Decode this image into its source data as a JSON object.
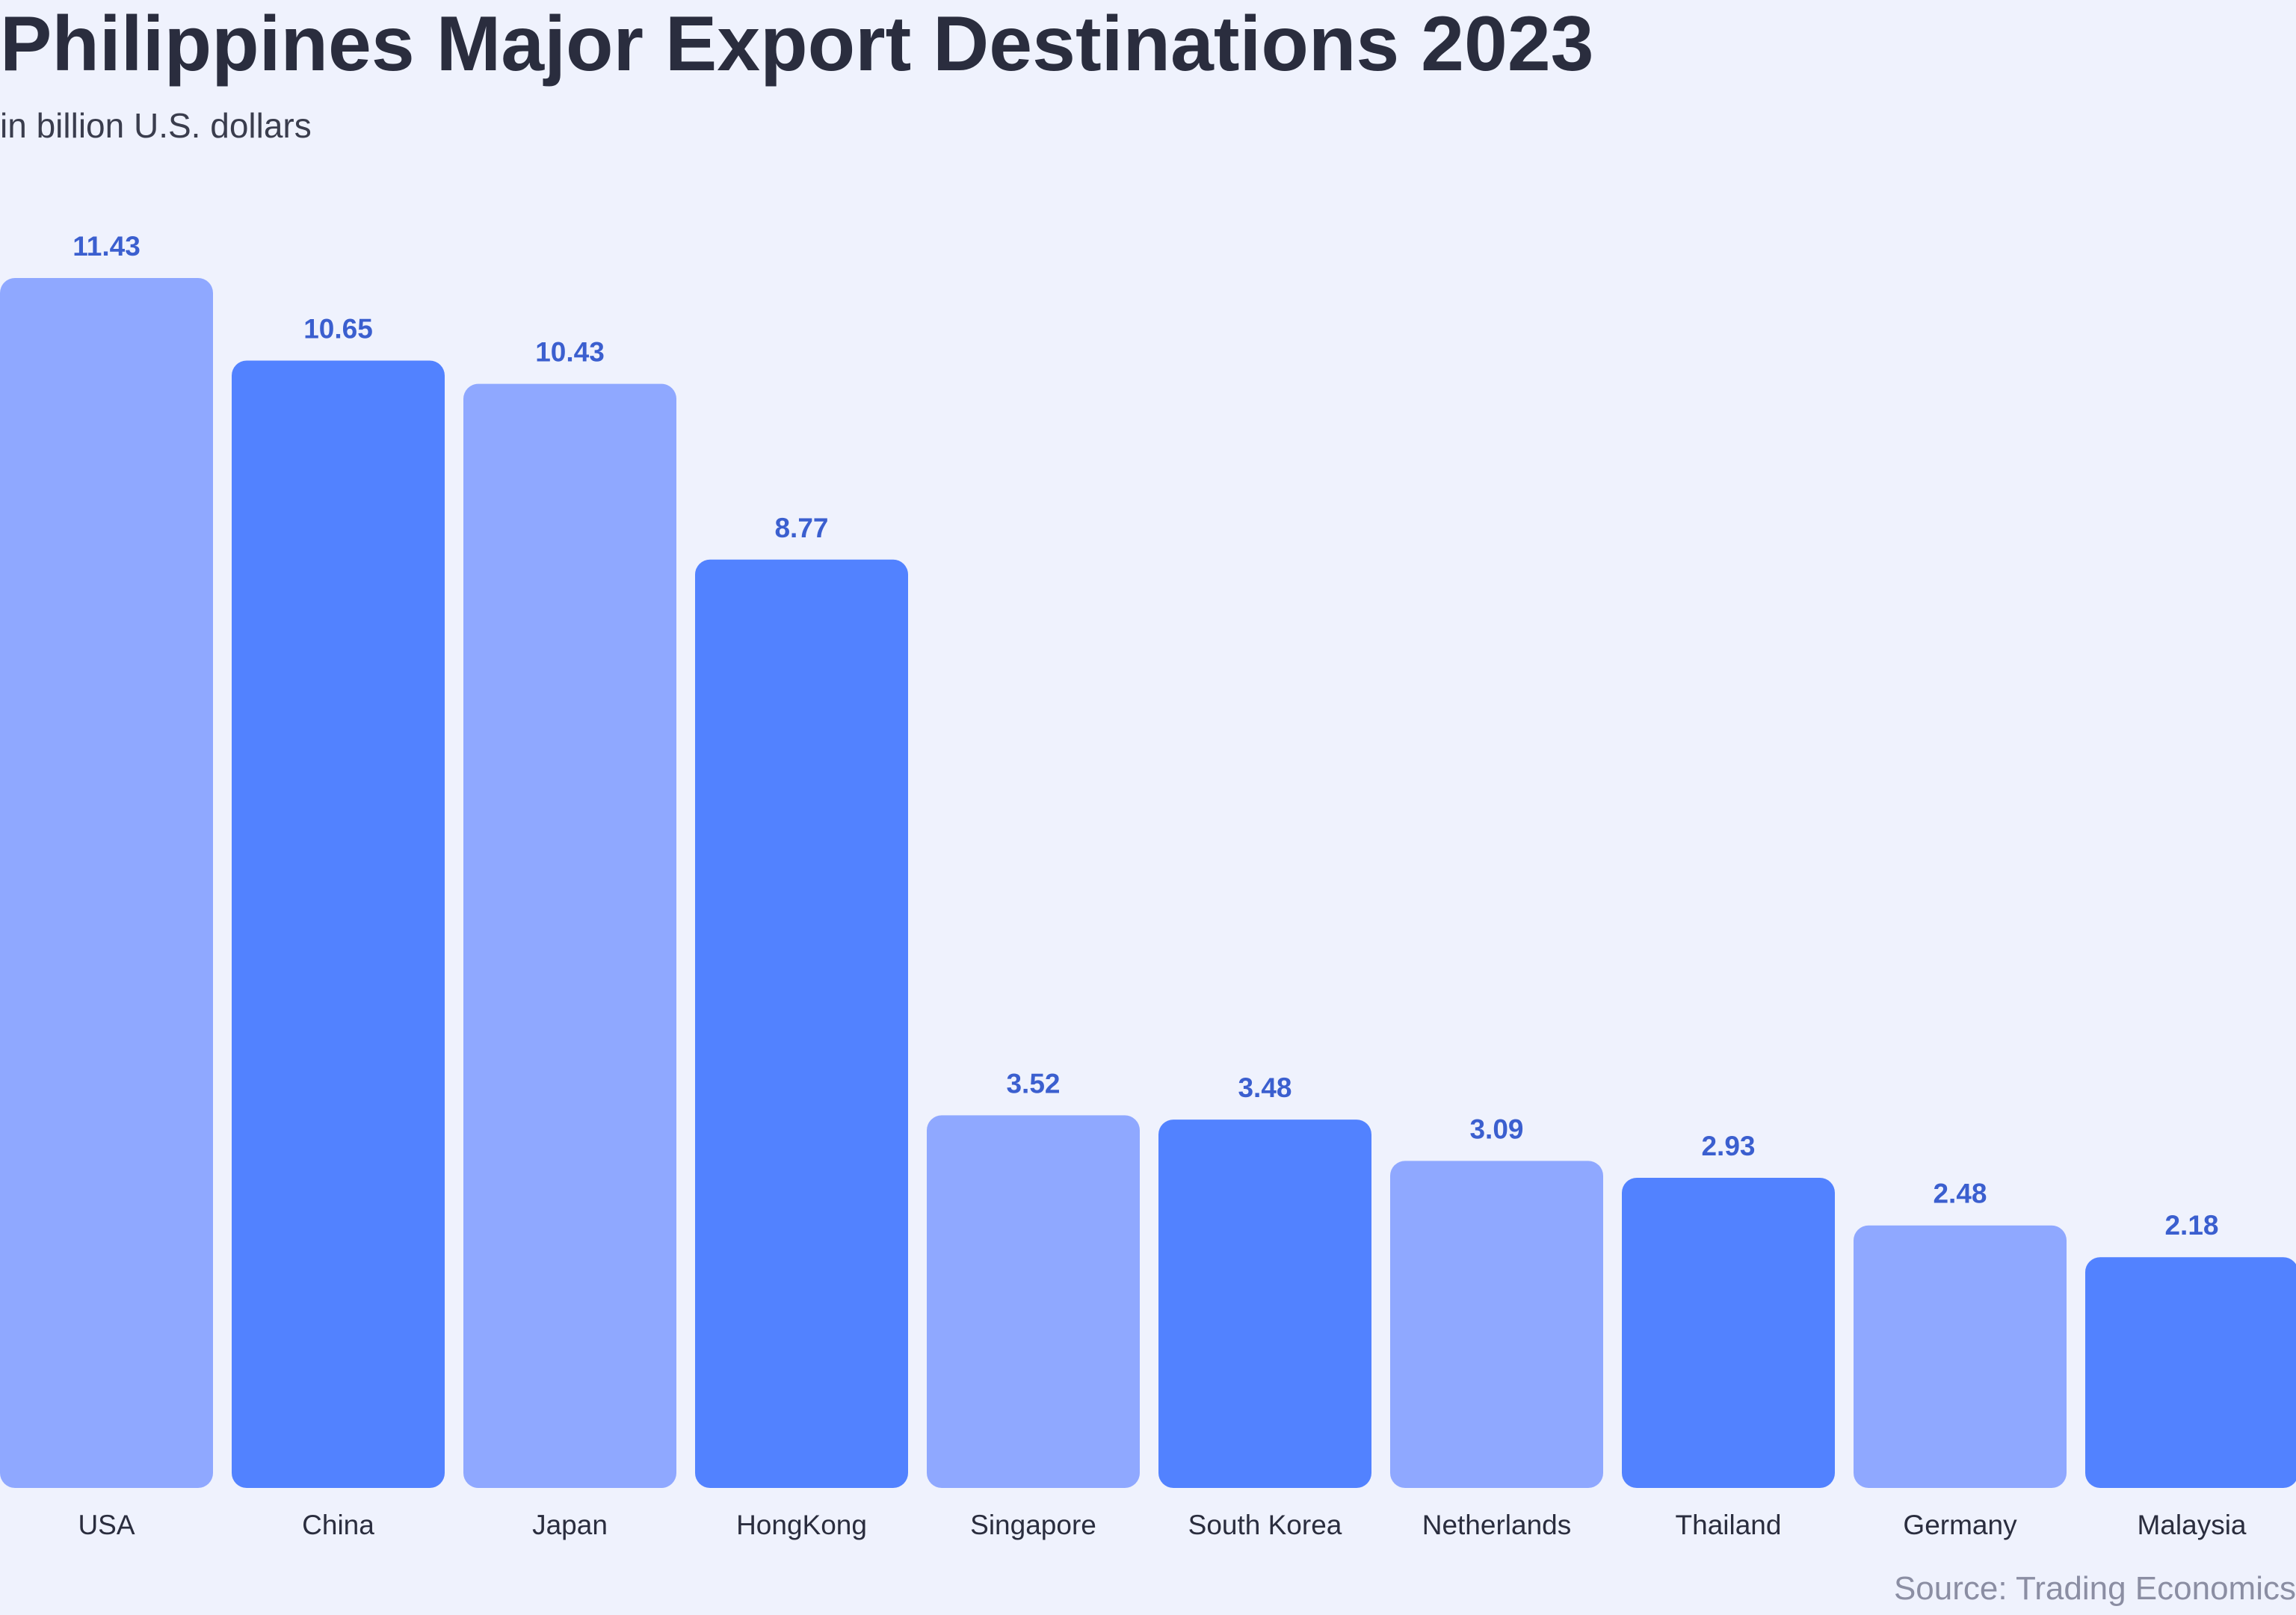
{
  "header": {
    "title": "Philippines Major Export Destinations 2023",
    "subtitle": "in billion U.S. dollars"
  },
  "footer": {
    "source": "Source: Trading Economics"
  },
  "colors": {
    "bar_light": "#8fa8ff",
    "bar_dark": "#5282ff",
    "value_label": "#3b5fcf",
    "background": "#eff2fd"
  },
  "chart_data": {
    "type": "bar",
    "title": "Philippines Major Export Destinations 2023",
    "subtitle": "in billion U.S. dollars",
    "xlabel": "",
    "ylabel": "",
    "categories": [
      "USA",
      "China",
      "Japan",
      "HongKong",
      "Singapore",
      "South Korea",
      "Netherlands",
      "Thailand",
      "Germany",
      "Malaysia"
    ],
    "values": [
      11.43,
      10.65,
      10.43,
      8.77,
      3.52,
      3.48,
      3.09,
      2.93,
      2.48,
      2.18
    ],
    "ylim": [
      0,
      11.43
    ],
    "grid": false,
    "legend": "none",
    "data_labels": true
  }
}
